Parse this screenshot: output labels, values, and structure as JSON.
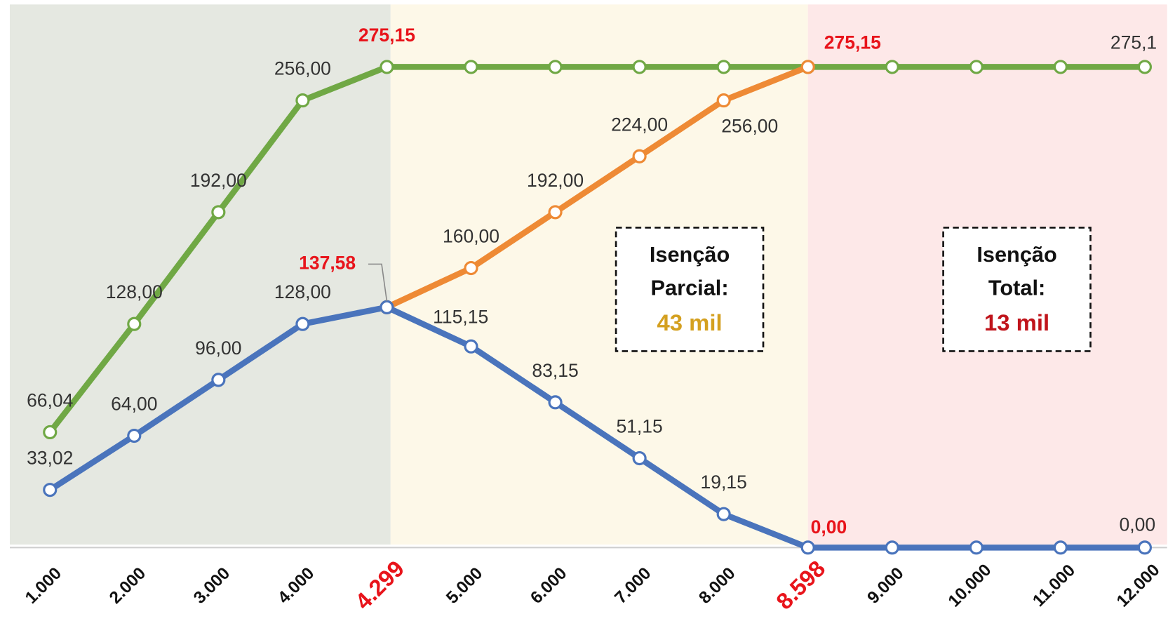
{
  "chart_data": {
    "type": "line",
    "categories": [
      "1.000",
      "2.000",
      "3.000",
      "4.000",
      "4.299",
      "5.000",
      "6.000",
      "7.000",
      "8.000",
      "8.598",
      "9.000",
      "10.000",
      "11.000",
      "12.000"
    ],
    "series": [
      {
        "color": "#70a845",
        "values": [
          66.04,
          128,
          192,
          256,
          275.15,
          275.15,
          275.15,
          275.15,
          275.15,
          275.15,
          275.15,
          275.15,
          275.15,
          275.15
        ],
        "value_labels": [
          "66,04",
          "128,00",
          "192,00",
          "256,00",
          "275,15",
          null,
          null,
          null,
          null,
          "275,15",
          null,
          null,
          null,
          "275,1"
        ]
      },
      {
        "color": "#ee8a35",
        "values": [
          null,
          null,
          null,
          null,
          137.58,
          160,
          192,
          224,
          256,
          275.15,
          null,
          null,
          null,
          null
        ],
        "value_labels": [
          null,
          null,
          null,
          null,
          null,
          "160,00",
          "192,00",
          "224,00",
          "256,00",
          null,
          null,
          null,
          null,
          null
        ]
      },
      {
        "color": "#4a74bc",
        "values": [
          33.02,
          64,
          96,
          128,
          137.58,
          115.15,
          83.15,
          51.15,
          19.15,
          0,
          0,
          0,
          0,
          0
        ],
        "value_labels": [
          "33,02",
          "64,00",
          "96,00",
          "128,00",
          "137,58",
          "115,15",
          "83,15",
          "51,15",
          "19,15",
          "0,00",
          null,
          null,
          null,
          "0,00"
        ]
      }
    ],
    "highlight": {
      "color": "#e8141b",
      "categories": [
        "4.299",
        "8.598"
      ]
    },
    "bands": [
      {
        "color": "#e5e8e1"
      },
      {
        "color": "#fdf8e8"
      },
      {
        "color": "#fde8e8"
      }
    ],
    "annotations": [
      {
        "lines": [
          "Isenção",
          "Parcial:"
        ],
        "value": "43 mil",
        "color": "#d4a020"
      },
      {
        "lines": [
          "Isenção",
          "Total:"
        ],
        "value": "13 mil",
        "color": "#c0141b"
      }
    ]
  }
}
